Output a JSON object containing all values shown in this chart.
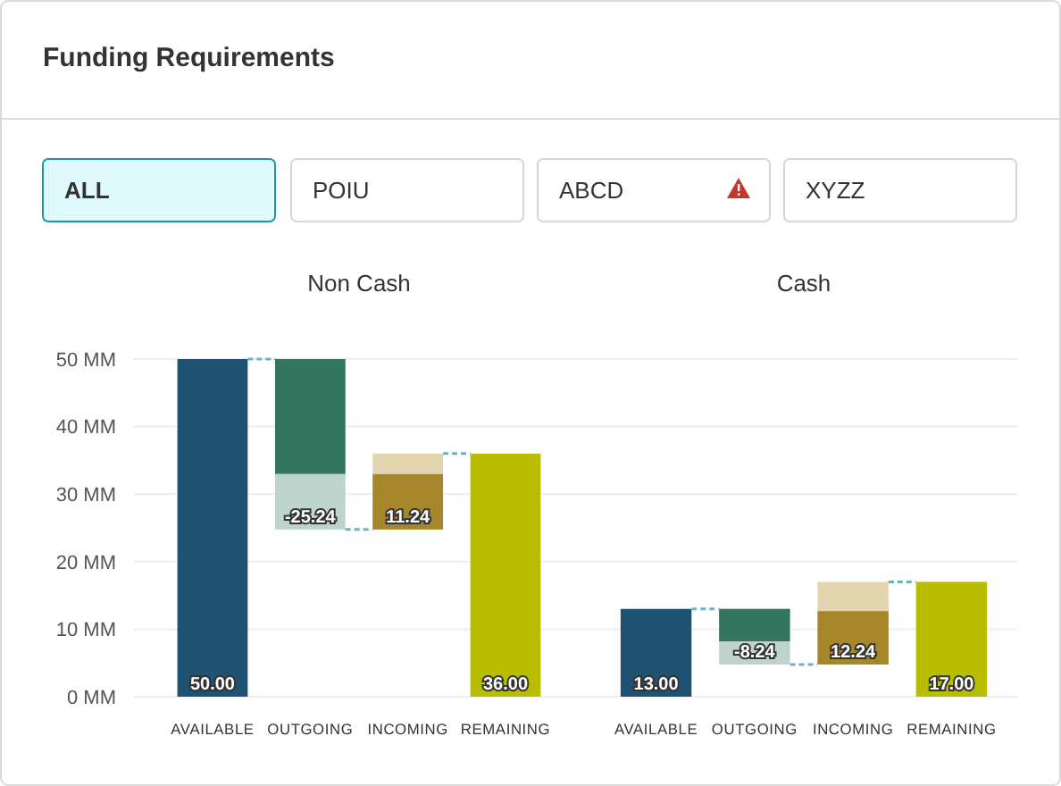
{
  "chart_data": [
    {
      "type": "other",
      "title": "Funding Requirements",
      "annotations": [
        "ALL",
        "POIU",
        "ABCD",
        "XYZZ"
      ]
    },
    {
      "type": "bar",
      "title": "Non Cash",
      "categories": [
        "AVAILABLE",
        "OUTGOING",
        "INCOMING",
        "REMAINING"
      ],
      "series": [
        {
          "colors": [
            "#1f5270",
            "#bdd3cc",
            "#e3d5b0",
            "#b8bd00"
          ],
          "base": [
            0,
            50,
            24.76,
            0
          ],
          "values": [
            50,
            -25.24,
            11.24,
            36
          ],
          "value_labels": [
            "50.00",
            "-25.24",
            "11.24",
            "36.00"
          ]
        },
        {
          "colors": [
            null,
            "#347560",
            "#a6862b",
            null
          ],
          "base": [
            null,
            50,
            24.76,
            null
          ],
          "values": [
            null,
            -17,
            8.2,
            null
          ]
        }
      ],
      "ylim": [
        0,
        50
      ],
      "yticks": [
        {
          "value": 0,
          "label": "0 MM"
        },
        {
          "value": 10,
          "label": "10 MM"
        },
        {
          "value": 20,
          "label": "20 MM"
        },
        {
          "value": 30,
          "label": "30 MM"
        },
        {
          "value": 40,
          "label": "40 MM"
        },
        {
          "value": 50,
          "label": "50 MM"
        }
      ],
      "grid": "y"
    },
    {
      "type": "bar",
      "title": "Cash",
      "categories": [
        "AVAILABLE",
        "OUTGOING",
        "INCOMING",
        "REMAINING"
      ],
      "series": [
        {
          "colors": [
            "#1f5270",
            "#bdd3cc",
            "#e3d5b0",
            "#b8bd00"
          ],
          "base": [
            0,
            13,
            4.76,
            0
          ],
          "values": [
            13,
            -8.24,
            12.24,
            17
          ],
          "value_labels": [
            "13.00",
            "-8.24",
            "12.24",
            "17.00"
          ]
        },
        {
          "colors": [
            null,
            "#347560",
            "#a6862b",
            null
          ],
          "base": [
            null,
            13,
            4.76,
            null
          ],
          "values": [
            null,
            -4.8,
            7.9,
            null
          ]
        }
      ],
      "ylim": [
        0,
        50
      ],
      "yticks": [
        0,
        10,
        20,
        30,
        40,
        50
      ],
      "grid": "y",
      "tick_labels": "x"
    }
  ]
}
